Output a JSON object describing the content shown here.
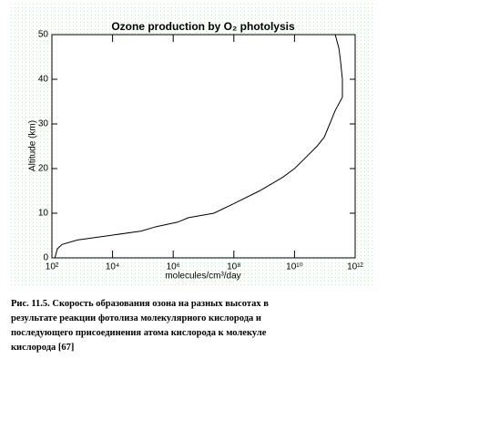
{
  "chart_data": {
    "type": "line",
    "title": "Ozone production by O₂ photolysis",
    "xlabel": "molecules/cm³/day",
    "ylabel": "Altitude (km)",
    "xscale": "log",
    "color": "#000000",
    "x": [
      126,
      150,
      215,
      700,
      8000,
      87000,
      280000,
      1400000,
      3200000,
      22000000,
      90000000,
      700000000,
      4000000000,
      10000000000,
      20000000000,
      55000000000,
      95000000000,
      145000000000,
      220000000000,
      380000000000,
      380000000000,
      330000000000,
      290000000000,
      220000000000
    ],
    "values": [
      0,
      2,
      3,
      4,
      5,
      6,
      7,
      8,
      9,
      10,
      12,
      15,
      18,
      20,
      22,
      25,
      27,
      30,
      33,
      36,
      40,
      44,
      47,
      50
    ],
    "xlim": [
      100,
      1000000000000
    ],
    "ylim": [
      0,
      50
    ],
    "xticks": [
      {
        "value": 100,
        "label": "10²"
      },
      {
        "value": 10000,
        "label": "10⁴"
      },
      {
        "value": 1000000,
        "label": "10⁶"
      },
      {
        "value": 100000000,
        "label": "10⁸"
      },
      {
        "value": 10000000000,
        "label": "10¹⁰"
      },
      {
        "value": 1000000000000,
        "label": "10¹²"
      }
    ],
    "yticks": [
      0,
      10,
      20,
      30,
      40,
      50
    ]
  },
  "caption": [
    "Рис. 11.5. Скорость образования озона на разных высотах в",
    "результате реакции фотолиза молекулярного кислорода и",
    "последующего присоединения атома кислорода к молекуле",
    "кислорода [67]"
  ]
}
